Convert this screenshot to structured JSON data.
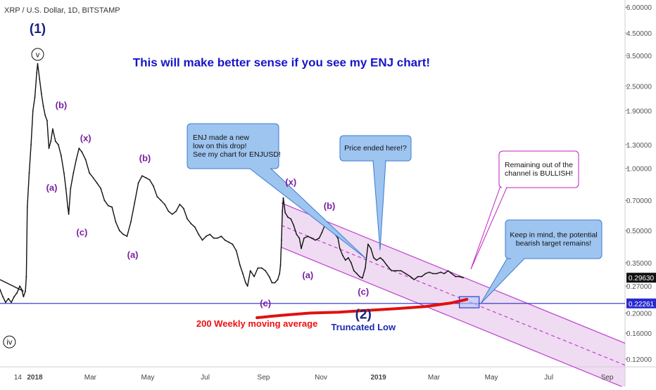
{
  "header": {
    "symbol_title": "XRP / U.S. Dollar, 1D, BITSTAMP"
  },
  "colors": {
    "price_line": "#111111",
    "wave_label": "#7B1FA2",
    "wave_label_major": "#1a237e",
    "headline": "#1515c8",
    "channel_fill": "#e1bee7",
    "channel_line": "#c040d0",
    "support_line": "#2a2ad0",
    "ma_line": "#e01010",
    "callout_fill": "#9ec4f0",
    "callout_border": "#3d7bd0",
    "callout_pink_border": "#c020c0"
  },
  "chart_data": {
    "type": "line",
    "title": "XRP / U.S. Dollar, 1D, BITSTAMP",
    "xlabel": "",
    "ylabel": "",
    "y_scale": "log",
    "ylim": [
      0.11,
      6.5
    ],
    "xlim": [
      "2017-11-25",
      "2019-09-20"
    ],
    "x_tick_labels": [
      {
        "label": "14",
        "x": "2017-12-14"
      },
      {
        "label": "2018",
        "x": "2018-01-01"
      },
      {
        "label": "Mar",
        "x": "2018-03-01"
      },
      {
        "label": "May",
        "x": "2018-05-01"
      },
      {
        "label": "Jul",
        "x": "2018-07-01"
      },
      {
        "label": "Sep",
        "x": "2018-09-01"
      },
      {
        "label": "Nov",
        "x": "2018-11-01"
      },
      {
        "label": "2019",
        "x": "2019-01-01"
      },
      {
        "label": "Mar",
        "x": "2019-03-01"
      },
      {
        "label": "May",
        "x": "2019-05-01"
      },
      {
        "label": "Jul",
        "x": "2019-07-01"
      },
      {
        "label": "Sep",
        "x": "2019-09-01"
      }
    ],
    "y_tick_labels": [
      "6.00000",
      "4.50000",
      "3.50000",
      "2.50000",
      "1.90000",
      "1.30000",
      "1.00000",
      "0.70000",
      "0.50000",
      "0.35000",
      "0.27000",
      "0.20000",
      "0.16000",
      "0.12000"
    ],
    "last_price_label": "0.29630",
    "last_price": 0.2963,
    "support_level_label": "0.22261",
    "support_level": 0.22261,
    "series": [
      {
        "values": [
          [
            "2017-11-25",
            0.26
          ],
          [
            "2017-11-28",
            0.24
          ],
          [
            "2017-12-01",
            0.225
          ],
          [
            "2017-12-04",
            0.235
          ],
          [
            "2017-12-07",
            0.225
          ],
          [
            "2017-12-10",
            0.24
          ],
          [
            "2017-12-13",
            0.25
          ],
          [
            "2017-12-16",
            0.27
          ],
          [
            "2017-12-18",
            0.26
          ],
          [
            "2017-12-20",
            0.24
          ],
          [
            "2017-12-22",
            0.255
          ],
          [
            "2017-12-23",
            0.3
          ],
          [
            "2017-12-24",
            0.65
          ],
          [
            "2017-12-26",
            0.95
          ],
          [
            "2017-12-28",
            1.3
          ],
          [
            "2017-12-30",
            1.9
          ],
          [
            "2018-01-01",
            2.2
          ],
          [
            "2018-01-03",
            2.9
          ],
          [
            "2018-01-04",
            3.2
          ],
          [
            "2018-01-06",
            2.7
          ],
          [
            "2018-01-08",
            2.3
          ],
          [
            "2018-01-10",
            2.0
          ],
          [
            "2018-01-12",
            1.8
          ],
          [
            "2018-01-14",
            1.7
          ],
          [
            "2018-01-16",
            1.25
          ],
          [
            "2018-01-18",
            1.35
          ],
          [
            "2018-01-20",
            1.55
          ],
          [
            "2018-01-23",
            1.35
          ],
          [
            "2018-01-26",
            1.3
          ],
          [
            "2018-01-29",
            1.15
          ],
          [
            "2018-02-01",
            0.95
          ],
          [
            "2018-02-03",
            0.8
          ],
          [
            "2018-02-05",
            0.65
          ],
          [
            "2018-02-06",
            0.6
          ],
          [
            "2018-02-08",
            0.8
          ],
          [
            "2018-02-11",
            0.95
          ],
          [
            "2018-02-14",
            1.1
          ],
          [
            "2018-02-17",
            1.25
          ],
          [
            "2018-02-20",
            1.2
          ],
          [
            "2018-02-24",
            1.1
          ],
          [
            "2018-02-28",
            0.95
          ],
          [
            "2018-03-04",
            0.9
          ],
          [
            "2018-03-08",
            0.85
          ],
          [
            "2018-03-12",
            0.8
          ],
          [
            "2018-03-16",
            0.7
          ],
          [
            "2018-03-20",
            0.66
          ],
          [
            "2018-03-24",
            0.65
          ],
          [
            "2018-03-28",
            0.55
          ],
          [
            "2018-04-01",
            0.5
          ],
          [
            "2018-04-05",
            0.48
          ],
          [
            "2018-04-09",
            0.47
          ],
          [
            "2018-04-13",
            0.55
          ],
          [
            "2018-04-17",
            0.68
          ],
          [
            "2018-04-21",
            0.85
          ],
          [
            "2018-04-25",
            0.92
          ],
          [
            "2018-04-29",
            0.9
          ],
          [
            "2018-05-03",
            0.88
          ],
          [
            "2018-05-07",
            0.82
          ],
          [
            "2018-05-11",
            0.73
          ],
          [
            "2018-05-15",
            0.7
          ],
          [
            "2018-05-19",
            0.67
          ],
          [
            "2018-05-23",
            0.62
          ],
          [
            "2018-05-27",
            0.6
          ],
          [
            "2018-05-31",
            0.62
          ],
          [
            "2018-06-04",
            0.67
          ],
          [
            "2018-06-08",
            0.64
          ],
          [
            "2018-06-12",
            0.57
          ],
          [
            "2018-06-16",
            0.54
          ],
          [
            "2018-06-20",
            0.52
          ],
          [
            "2018-06-24",
            0.48
          ],
          [
            "2018-06-28",
            0.45
          ],
          [
            "2018-07-02",
            0.47
          ],
          [
            "2018-07-06",
            0.48
          ],
          [
            "2018-07-10",
            0.46
          ],
          [
            "2018-07-14",
            0.46
          ],
          [
            "2018-07-18",
            0.47
          ],
          [
            "2018-07-22",
            0.45
          ],
          [
            "2018-07-26",
            0.44
          ],
          [
            "2018-07-30",
            0.43
          ],
          [
            "2018-08-03",
            0.4
          ],
          [
            "2018-08-07",
            0.34
          ],
          [
            "2018-08-10",
            0.31
          ],
          [
            "2018-08-13",
            0.28
          ],
          [
            "2018-08-15",
            0.27
          ],
          [
            "2018-08-18",
            0.32
          ],
          [
            "2018-08-22",
            0.3
          ],
          [
            "2018-08-26",
            0.33
          ],
          [
            "2018-08-30",
            0.33
          ],
          [
            "2018-09-03",
            0.32
          ],
          [
            "2018-09-07",
            0.3
          ],
          [
            "2018-09-10",
            0.28
          ],
          [
            "2018-09-13",
            0.28
          ],
          [
            "2018-09-16",
            0.29
          ],
          [
            "2018-09-18",
            0.31
          ],
          [
            "2018-09-19",
            0.34
          ],
          [
            "2018-09-20",
            0.45
          ],
          [
            "2018-09-21",
            0.62
          ],
          [
            "2018-09-22",
            0.72
          ],
          [
            "2018-09-24",
            0.61
          ],
          [
            "2018-09-27",
            0.58
          ],
          [
            "2018-09-30",
            0.57
          ],
          [
            "2018-10-03",
            0.53
          ],
          [
            "2018-10-06",
            0.48
          ],
          [
            "2018-10-09",
            0.46
          ],
          [
            "2018-10-11",
            0.41
          ],
          [
            "2018-10-14",
            0.46
          ],
          [
            "2018-10-18",
            0.47
          ],
          [
            "2018-10-22",
            0.46
          ],
          [
            "2018-10-26",
            0.45
          ],
          [
            "2018-10-30",
            0.46
          ],
          [
            "2018-11-02",
            0.49
          ],
          [
            "2018-11-05",
            0.53
          ],
          [
            "2018-11-07",
            0.55
          ],
          [
            "2018-11-10",
            0.52
          ],
          [
            "2018-11-13",
            0.5
          ],
          [
            "2018-11-16",
            0.48
          ],
          [
            "2018-11-19",
            0.46
          ],
          [
            "2018-11-21",
            0.41
          ],
          [
            "2018-11-24",
            0.38
          ],
          [
            "2018-11-27",
            0.36
          ],
          [
            "2018-11-30",
            0.37
          ],
          [
            "2018-12-03",
            0.35
          ],
          [
            "2018-12-06",
            0.32
          ],
          [
            "2018-12-09",
            0.31
          ],
          [
            "2018-12-12",
            0.3
          ],
          [
            "2018-12-15",
            0.295
          ],
          [
            "2018-12-18",
            0.33
          ],
          [
            "2018-12-21",
            0.43
          ],
          [
            "2018-12-24",
            0.41
          ],
          [
            "2018-12-27",
            0.37
          ],
          [
            "2018-12-30",
            0.36
          ],
          [
            "2019-01-03",
            0.37
          ],
          [
            "2019-01-06",
            0.36
          ],
          [
            "2019-01-10",
            0.34
          ],
          [
            "2019-01-15",
            0.32
          ],
          [
            "2019-01-20",
            0.32
          ],
          [
            "2019-01-25",
            0.32
          ],
          [
            "2019-01-30",
            0.31
          ],
          [
            "2019-02-04",
            0.3
          ],
          [
            "2019-02-08",
            0.29
          ],
          [
            "2019-02-12",
            0.3
          ],
          [
            "2019-02-16",
            0.3
          ],
          [
            "2019-02-20",
            0.31
          ],
          [
            "2019-02-24",
            0.315
          ],
          [
            "2019-02-28",
            0.31
          ],
          [
            "2019-03-04",
            0.31
          ],
          [
            "2019-03-08",
            0.315
          ],
          [
            "2019-03-12",
            0.31
          ],
          [
            "2019-03-16",
            0.32
          ],
          [
            "2019-03-20",
            0.31
          ],
          [
            "2019-03-24",
            0.3
          ],
          [
            "2019-03-28",
            0.3
          ],
          [
            "2019-04-01",
            0.2963
          ]
        ]
      }
    ],
    "moving_average": {
      "label": "200 Weekly moving average",
      "values": [
        [
          "2018-08-25",
          0.19
        ],
        [
          "2018-09-20",
          0.195
        ],
        [
          "2018-10-20",
          0.2
        ],
        [
          "2018-11-20",
          0.202
        ],
        [
          "2018-12-20",
          0.206
        ],
        [
          "2019-01-20",
          0.21
        ],
        [
          "2019-02-20",
          0.215
        ],
        [
          "2019-03-20",
          0.224
        ],
        [
          "2019-04-05",
          0.233
        ]
      ]
    },
    "channel": {
      "upper": [
        [
          "2018-09-20",
          0.68
        ],
        [
          "2019-09-20",
          0.143
        ]
      ],
      "middle": [
        [
          "2018-09-20",
          0.53
        ],
        [
          "2019-09-20",
          0.112
        ]
      ],
      "lower": [
        [
          "2018-09-20",
          0.415
        ],
        [
          "2019-09-20",
          0.087
        ]
      ]
    },
    "target_box": {
      "x": [
        "2019-03-28",
        "2019-04-18"
      ],
      "y": [
        0.212,
        0.24
      ]
    },
    "trendline": [
      [
        "2017-11-25",
        0.29
      ],
      [
        "2017-12-20",
        0.255
      ]
    ],
    "annotations": [
      {
        "text": "(1)",
        "x": "2018-01-04",
        "y": 4.5,
        "style": "major"
      },
      {
        "text": "v",
        "x": "2018-01-04",
        "y": 3.55,
        "style": "circle"
      },
      {
        "text": "(b)",
        "x": "2018-01-29",
        "y": 1.95,
        "style": "wave"
      },
      {
        "text": "(x)",
        "x": "2018-02-24",
        "y": 1.35,
        "style": "wave"
      },
      {
        "text": "(a)",
        "x": "2018-01-19",
        "y": 0.78,
        "style": "wave"
      },
      {
        "text": "(c)",
        "x": "2018-02-20",
        "y": 0.475,
        "style": "wave"
      },
      {
        "text": "(b)",
        "x": "2018-04-28",
        "y": 1.08,
        "style": "wave"
      },
      {
        "text": "(a)",
        "x": "2018-04-15",
        "y": 0.37,
        "style": "wave"
      },
      {
        "text": "(x)",
        "x": "2018-09-30",
        "y": 0.83,
        "style": "wave"
      },
      {
        "text": "(b)",
        "x": "2018-11-10",
        "y": 0.635,
        "style": "wave"
      },
      {
        "text": "(a)",
        "x": "2018-10-18",
        "y": 0.295,
        "style": "wave"
      },
      {
        "text": "(c)",
        "x": "2018-09-03",
        "y": 0.215,
        "style": "wave"
      },
      {
        "text": "(c)",
        "x": "2018-12-16",
        "y": 0.245,
        "style": "wave"
      },
      {
        "text": "(2)",
        "x": "2018-12-16",
        "y": 0.188,
        "style": "major"
      },
      {
        "text": "iv",
        "x": "2017-12-05",
        "y": 0.145,
        "style": "circle"
      },
      {
        "text": "This will make better sense if you see my ENJ chart!",
        "x": "2018-09-20",
        "y": 3.1,
        "style": "headline"
      },
      {
        "text": "200 Weekly moving average",
        "x": "2018-08-25",
        "y": 0.172,
        "style": "red"
      },
      {
        "text": "Truncated Low",
        "x": "2018-12-16",
        "y": 0.165,
        "style": "blue"
      }
    ],
    "callouts": [
      {
        "lines": [
          "ENJ made a new",
          "low on this drop!",
          "See my chart for ENJUSD!"
        ],
        "style": "blue"
      },
      {
        "lines": [
          "Price ended here!?"
        ],
        "style": "blue"
      },
      {
        "lines": [
          "Remaining out of the",
          "channel is BULLISH!"
        ],
        "style": "pink"
      },
      {
        "lines": [
          "Keep in mind, the potential",
          "bearish target remains!"
        ],
        "style": "blue"
      }
    ]
  }
}
